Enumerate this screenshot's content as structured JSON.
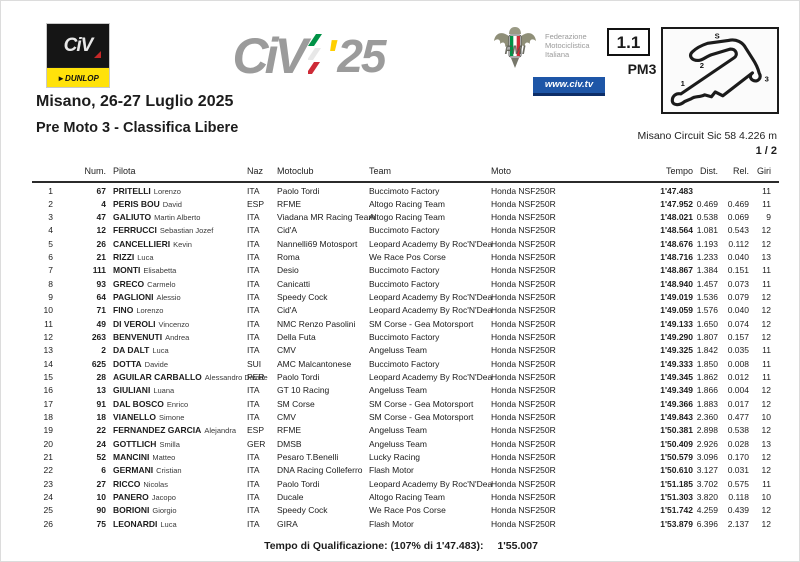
{
  "logos": {
    "civ_box_text": "CiV",
    "dunlop_text": "►DUNLOP",
    "civ25_text": "CiV",
    "civ25_apostrophe": "'",
    "civ25_year": "25",
    "fmi_line1": "Federazione",
    "fmi_line2": "Motociclistica",
    "fmi_line3": "Italiana",
    "civ_tv": "www.civ.tv",
    "fmi_initials": "FMI"
  },
  "header": {
    "session_code": "1.1",
    "session_name": "PM3",
    "track_caption": "Misano Circuit Sic 58 4.226 m",
    "page": "1 / 2",
    "track_labels": {
      "start": "S",
      "s1": "1",
      "s2": "2",
      "s3": "3"
    }
  },
  "title": {
    "event": "Misano, 26-27 Luglio 2025",
    "session": "Pre Moto 3 - Classifica Libere"
  },
  "table": {
    "headers": {
      "num": "Num.",
      "pilota": "Pilota",
      "naz": "Naz",
      "motoclub": "Motoclub",
      "team": "Team",
      "moto": "Moto",
      "tempo": "Tempo",
      "dist": "Dist.",
      "rel": "Rel.",
      "giri": "Giri"
    },
    "rows": [
      {
        "pos": "1",
        "num": "67",
        "last": "PRITELLI",
        "first": "Lorenzo",
        "naz": "ITA",
        "club": "Paolo Tordi",
        "team": "Buccimoto Factory",
        "moto": "Honda NSF250R",
        "tempo": "1'47.483",
        "dist": "",
        "rel": "",
        "giri": "11"
      },
      {
        "pos": "2",
        "num": "4",
        "last": "PERIS BOU",
        "first": "David",
        "naz": "ESP",
        "club": "RFME",
        "team": "Altogo Racing Team",
        "moto": "Honda NSF250R",
        "tempo": "1'47.952",
        "dist": "0.469",
        "rel": "0.469",
        "giri": "11"
      },
      {
        "pos": "3",
        "num": "47",
        "last": "GALIUTO",
        "first": "Martin Alberto",
        "naz": "ITA",
        "club": "Viadana MR Racing Team",
        "team": "Altogo Racing Team",
        "moto": "Honda NSF250R",
        "tempo": "1'48.021",
        "dist": "0.538",
        "rel": "0.069",
        "giri": "9"
      },
      {
        "pos": "4",
        "num": "12",
        "last": "FERRUCCI",
        "first": "Sebastian Jozef",
        "naz": "ITA",
        "club": "Cid'A",
        "team": "Buccimoto Factory",
        "moto": "Honda NSF250R",
        "tempo": "1'48.564",
        "dist": "1.081",
        "rel": "0.543",
        "giri": "12"
      },
      {
        "pos": "5",
        "num": "26",
        "last": "CANCELLIERI",
        "first": "Kevin",
        "naz": "ITA",
        "club": "Nannelli69 Motosport",
        "team": "Leopard Academy By Roc'N'Dea",
        "moto": "Honda NSF250R",
        "tempo": "1'48.676",
        "dist": "1.193",
        "rel": "0.112",
        "giri": "12"
      },
      {
        "pos": "6",
        "num": "21",
        "last": "RIZZI",
        "first": "Luca",
        "naz": "ITA",
        "club": "Roma",
        "team": "We Race Pos Corse",
        "moto": "Honda NSF250R",
        "tempo": "1'48.716",
        "dist": "1.233",
        "rel": "0.040",
        "giri": "13"
      },
      {
        "pos": "7",
        "num": "111",
        "last": "MONTI",
        "first": "Elisabetta",
        "naz": "ITA",
        "club": "Desio",
        "team": "Buccimoto Factory",
        "moto": "Honda NSF250R",
        "tempo": "1'48.867",
        "dist": "1.384",
        "rel": "0.151",
        "giri": "11"
      },
      {
        "pos": "8",
        "num": "93",
        "last": "GRECO",
        "first": "Carmelo",
        "naz": "ITA",
        "club": "Canicatti",
        "team": "Buccimoto Factory",
        "moto": "Honda NSF250R",
        "tempo": "1'48.940",
        "dist": "1.457",
        "rel": "0.073",
        "giri": "11"
      },
      {
        "pos": "9",
        "num": "64",
        "last": "PAGLIONI",
        "first": "Alessio",
        "naz": "ITA",
        "club": "Speedy Cock",
        "team": "Leopard Academy By Roc'N'Dea",
        "moto": "Honda NSF250R",
        "tempo": "1'49.019",
        "dist": "1.536",
        "rel": "0.079",
        "giri": "12"
      },
      {
        "pos": "10",
        "num": "71",
        "last": "FINO",
        "first": "Lorenzo",
        "naz": "ITA",
        "club": "Cid'A",
        "team": "Leopard Academy By Roc'N'Dea",
        "moto": "Honda NSF250R",
        "tempo": "1'49.059",
        "dist": "1.576",
        "rel": "0.040",
        "giri": "12"
      },
      {
        "pos": "11",
        "num": "49",
        "last": "DI VEROLI",
        "first": "Vincenzo",
        "naz": "ITA",
        "club": "NMC Renzo Pasolini",
        "team": "SM Corse - Gea Motorsport",
        "moto": "Honda NSF250R",
        "tempo": "1'49.133",
        "dist": "1.650",
        "rel": "0.074",
        "giri": "12"
      },
      {
        "pos": "12",
        "num": "263",
        "last": "BENVENUTI",
        "first": "Andrea",
        "naz": "ITA",
        "club": "Della Futa",
        "team": "Buccimoto Factory",
        "moto": "Honda NSF250R",
        "tempo": "1'49.290",
        "dist": "1.807",
        "rel": "0.157",
        "giri": "12"
      },
      {
        "pos": "13",
        "num": "2",
        "last": "DA DALT",
        "first": "Luca",
        "naz": "ITA",
        "club": "CMV",
        "team": "Angeluss Team",
        "moto": "Honda NSF250R",
        "tempo": "1'49.325",
        "dist": "1.842",
        "rel": "0.035",
        "giri": "11"
      },
      {
        "pos": "14",
        "num": "625",
        "last": "DOTTA",
        "first": "Davide",
        "naz": "SUI",
        "club": "AMC Malcantonese",
        "team": "Buccimoto Factory",
        "moto": "Honda NSF250R",
        "tempo": "1'49.333",
        "dist": "1.850",
        "rel": "0.008",
        "giri": "11"
      },
      {
        "pos": "15",
        "num": "28",
        "last": "AGUILAR CARBALLO",
        "first": "Alessandro Davide",
        "naz": "PER",
        "club": "Paolo Tordi",
        "team": "Leopard Academy By Roc'N'Dea",
        "moto": "Honda NSF250R",
        "tempo": "1'49.345",
        "dist": "1.862",
        "rel": "0.012",
        "giri": "11"
      },
      {
        "pos": "16",
        "num": "13",
        "last": "GIULIANI",
        "first": "Luana",
        "naz": "ITA",
        "club": "GT 10 Racing",
        "team": "Angeluss Team",
        "moto": "Honda NSF250R",
        "tempo": "1'49.349",
        "dist": "1.866",
        "rel": "0.004",
        "giri": "12"
      },
      {
        "pos": "17",
        "num": "91",
        "last": "DAL BOSCO",
        "first": "Enrico",
        "naz": "ITA",
        "club": "SM Corse",
        "team": "SM Corse - Gea Motorsport",
        "moto": "Honda NSF250R",
        "tempo": "1'49.366",
        "dist": "1.883",
        "rel": "0.017",
        "giri": "12"
      },
      {
        "pos": "18",
        "num": "18",
        "last": "VIANELLO",
        "first": "Simone",
        "naz": "ITA",
        "club": "CMV",
        "team": "SM Corse - Gea Motorsport",
        "moto": "Honda NSF250R",
        "tempo": "1'49.843",
        "dist": "2.360",
        "rel": "0.477",
        "giri": "10"
      },
      {
        "pos": "19",
        "num": "22",
        "last": "FERNANDEZ GARCIA",
        "first": "Alejandra",
        "naz": "ESP",
        "club": "RFME",
        "team": "Angeluss Team",
        "moto": "Honda NSF250R",
        "tempo": "1'50.381",
        "dist": "2.898",
        "rel": "0.538",
        "giri": "12"
      },
      {
        "pos": "20",
        "num": "24",
        "last": "GOTTLICH",
        "first": "Smilla",
        "naz": "GER",
        "club": "DMSB",
        "team": "Angeluss Team",
        "moto": "Honda NSF250R",
        "tempo": "1'50.409",
        "dist": "2.926",
        "rel": "0.028",
        "giri": "13"
      },
      {
        "pos": "21",
        "num": "52",
        "last": "MANCINI",
        "first": "Matteo",
        "naz": "ITA",
        "club": "Pesaro T.Benelli",
        "team": "Lucky Racing",
        "moto": "Honda NSF250R",
        "tempo": "1'50.579",
        "dist": "3.096",
        "rel": "0.170",
        "giri": "12"
      },
      {
        "pos": "22",
        "num": "6",
        "last": "GERMANI",
        "first": "Cristian",
        "naz": "ITA",
        "club": "DNA Racing Colleferro",
        "team": "Flash Motor",
        "moto": "Honda NSF250R",
        "tempo": "1'50.610",
        "dist": "3.127",
        "rel": "0.031",
        "giri": "12"
      },
      {
        "pos": "23",
        "num": "27",
        "last": "RICCO",
        "first": "Nicolas",
        "naz": "ITA",
        "club": "Paolo Tordi",
        "team": "Leopard Academy By Roc'N'Dea",
        "moto": "Honda NSF250R",
        "tempo": "1'51.185",
        "dist": "3.702",
        "rel": "0.575",
        "giri": "11"
      },
      {
        "pos": "24",
        "num": "10",
        "last": "PANERO",
        "first": "Jacopo",
        "naz": "ITA",
        "club": "Ducale",
        "team": "Altogo Racing Team",
        "moto": "Honda NSF250R",
        "tempo": "1'51.303",
        "dist": "3.820",
        "rel": "0.118",
        "giri": "10"
      },
      {
        "pos": "25",
        "num": "90",
        "last": "BORIONI",
        "first": "Giorgio",
        "naz": "ITA",
        "club": "Speedy Cock",
        "team": "We Race Pos Corse",
        "moto": "Honda NSF250R",
        "tempo": "1'51.742",
        "dist": "4.259",
        "rel": "0.439",
        "giri": "12"
      },
      {
        "pos": "26",
        "num": "75",
        "last": "LEONARDI",
        "first": "Luca",
        "naz": "ITA",
        "club": "GIRA",
        "team": "Flash Motor",
        "moto": "Honda NSF250R",
        "tempo": "1'53.879",
        "dist": "6.396",
        "rel": "2.137",
        "giri": "12"
      }
    ]
  },
  "footer": {
    "label": "Tempo di Qualificazione: (107% di 1'47.483):",
    "value": "1'55.007"
  },
  "colors": {
    "logo_grey": "#9b9b9b",
    "dunlop_yellow": "#ffe20a",
    "apostrophe_yellow": "#ffcf00",
    "banner_blue": "#1e56a7",
    "flag_green": "#009246",
    "flag_red": "#ce2b37"
  }
}
